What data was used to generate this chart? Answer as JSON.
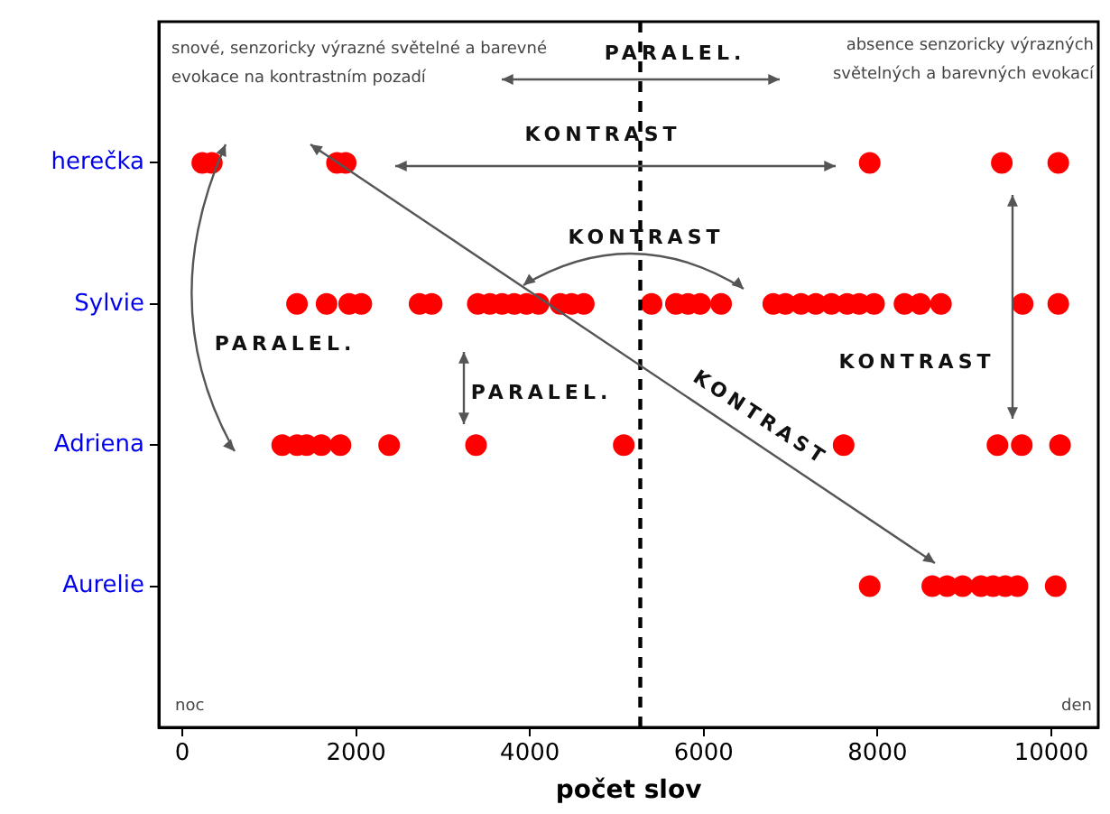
{
  "chart_data": {
    "type": "scatter",
    "orientation": "horizontal",
    "xlabel": "počet slov",
    "categories": [
      "herečka",
      "Sylvie",
      "Adriena",
      "Aurelie"
    ],
    "series": [
      {
        "color": "#ff0000",
        "x": [
          "herečka",
          "herečka",
          "herečka",
          "herečka",
          "herečka",
          "herečka",
          "herečka"
        ],
        "values": [
          230,
          340,
          1780,
          1880,
          7910,
          9430,
          10080
        ]
      },
      {
        "color": "#ff0000",
        "x": [
          "Sylvie",
          "Sylvie",
          "Sylvie",
          "Sylvie",
          "Sylvie",
          "Sylvie",
          "Sylvie",
          "Sylvie",
          "Sylvie",
          "Sylvie",
          "Sylvie",
          "Sylvie",
          "Sylvie",
          "Sylvie",
          "Sylvie",
          "Sylvie",
          "Sylvie",
          "Sylvie",
          "Sylvie",
          "Sylvie",
          "Sylvie",
          "Sylvie",
          "Sylvie",
          "Sylvie",
          "Sylvie",
          "Sylvie",
          "Sylvie",
          "Sylvie",
          "Sylvie",
          "Sylvie",
          "Sylvie",
          "Sylvie",
          "Sylvie"
        ],
        "values": [
          1320,
          1660,
          1920,
          2060,
          2730,
          2870,
          3400,
          3540,
          3680,
          3820,
          3960,
          4100,
          4350,
          4480,
          4620,
          5400,
          5680,
          5820,
          5960,
          6200,
          6800,
          6940,
          7120,
          7290,
          7470,
          7650,
          7790,
          7960,
          8310,
          8490,
          8730,
          9670,
          10080
        ]
      },
      {
        "color": "#ff0000",
        "x": [
          "Adriena",
          "Adriena",
          "Adriena",
          "Adriena",
          "Adriena",
          "Adriena",
          "Adriena",
          "Adriena",
          "Adriena",
          "Adriena",
          "Adriena",
          "Adriena"
        ],
        "values": [
          1150,
          1320,
          1430,
          1600,
          1820,
          2380,
          3380,
          5080,
          7610,
          9380,
          9660,
          10100
        ]
      },
      {
        "color": "#ff0000",
        "x": [
          "Aurelie",
          "Aurelie",
          "Aurelie",
          "Aurelie",
          "Aurelie",
          "Aurelie",
          "Aurelie",
          "Aurelie",
          "Aurelie"
        ],
        "values": [
          7910,
          8630,
          8800,
          8980,
          9190,
          9330,
          9470,
          9610,
          10050
        ]
      }
    ],
    "xlim": [
      -270,
      10540
    ],
    "xticks": [
      0,
      2000,
      4000,
      6000,
      8000,
      10000
    ],
    "ref_lines": [
      {
        "axis": "x",
        "value": 5270,
        "color": "#000000",
        "line_style": "dashed"
      }
    ],
    "annotations": [
      "snové, senzoricky výrazné světelné a barevné\nevokace na kontrastním pozadí",
      "PARALEL.",
      "absence senzoricky výrazných\nsvětelných a barevných evokací",
      "KONTRAST",
      "KONTRAST",
      "PARALEL.",
      "PARALEL.",
      "KONTRAST",
      "KONTRAST",
      "noc",
      "den"
    ],
    "marker": "circle",
    "grid": false,
    "legend": false
  }
}
